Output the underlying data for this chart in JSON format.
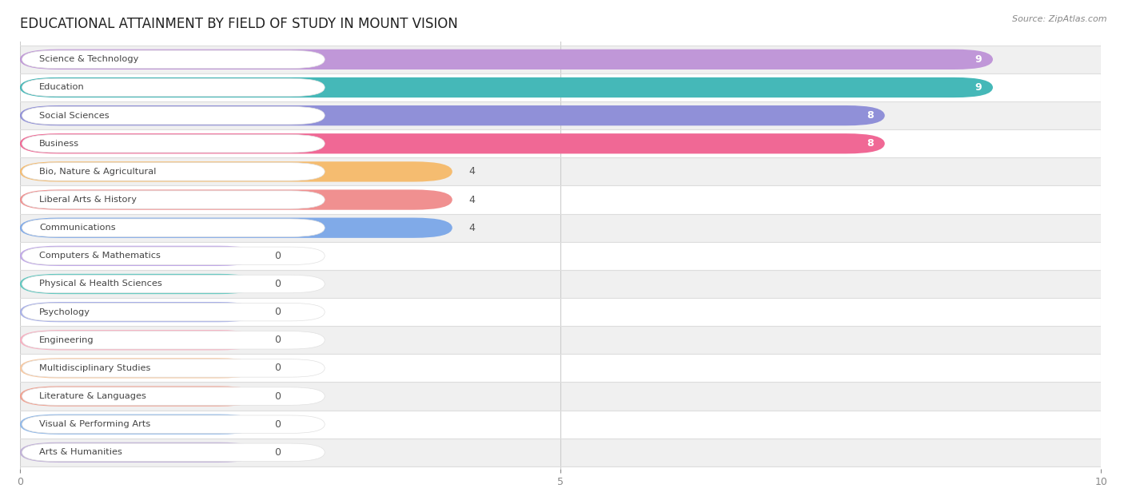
{
  "title": "EDUCATIONAL ATTAINMENT BY FIELD OF STUDY IN MOUNT VISION",
  "source": "Source: ZipAtlas.com",
  "categories": [
    "Science & Technology",
    "Education",
    "Social Sciences",
    "Business",
    "Bio, Nature & Agricultural",
    "Liberal Arts & History",
    "Communications",
    "Computers & Mathematics",
    "Physical & Health Sciences",
    "Psychology",
    "Engineering",
    "Multidisciplinary Studies",
    "Literature & Languages",
    "Visual & Performing Arts",
    "Arts & Humanities"
  ],
  "values": [
    9,
    9,
    8,
    8,
    4,
    4,
    4,
    0,
    0,
    0,
    0,
    0,
    0,
    0,
    0
  ],
  "bar_colors": [
    "#c097d8",
    "#45b8b8",
    "#9090d8",
    "#f06895",
    "#f5bc70",
    "#f09090",
    "#80aae8",
    "#c0a8e8",
    "#60c8c0",
    "#a8b0e8",
    "#f8aec0",
    "#f8c8a0",
    "#f0a090",
    "#90b8e8",
    "#c0b0d8"
  ],
  "xlim": [
    0,
    10
  ],
  "xticks": [
    0,
    5,
    10
  ],
  "background_color": "#ffffff",
  "row_bg_even": "#f0f0f0",
  "row_bg_odd": "#ffffff",
  "title_fontsize": 12,
  "label_fontsize": 9,
  "value_fontsize": 9,
  "zero_bar_width": 2.2
}
